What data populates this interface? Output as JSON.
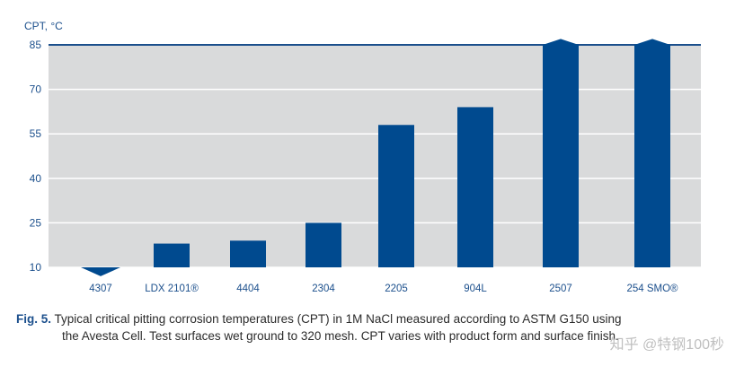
{
  "chart_data": {
    "type": "bar",
    "ylabel": "CPT, °C",
    "ylim": [
      10,
      85
    ],
    "yticks": [
      10,
      25,
      40,
      55,
      70,
      85
    ],
    "grid": true,
    "categories": [
      "4307",
      "LDX 2101®",
      "4404",
      "2304",
      "2205",
      "904L",
      "2507",
      "254 SMO®"
    ],
    "values": [
      7,
      18,
      19,
      25,
      58,
      64,
      87,
      87
    ],
    "markers": [
      "down-arrow",
      "",
      "",
      "",
      "",
      "",
      "up-arrow",
      "up-arrow"
    ],
    "bar_color": "#004a8f",
    "plot_bg": "#d9dadb"
  },
  "caption": {
    "label": "Fig. 5.",
    "line1": " Typical critical pitting corrosion temperatures (CPT) in 1M NaCl measured according to ASTM G150 using",
    "line2": "the Avesta Cell. Test surfaces wet ground to 320 mesh. CPT varies with product form and surface finish."
  },
  "watermark": "知乎 @特钢100秒"
}
